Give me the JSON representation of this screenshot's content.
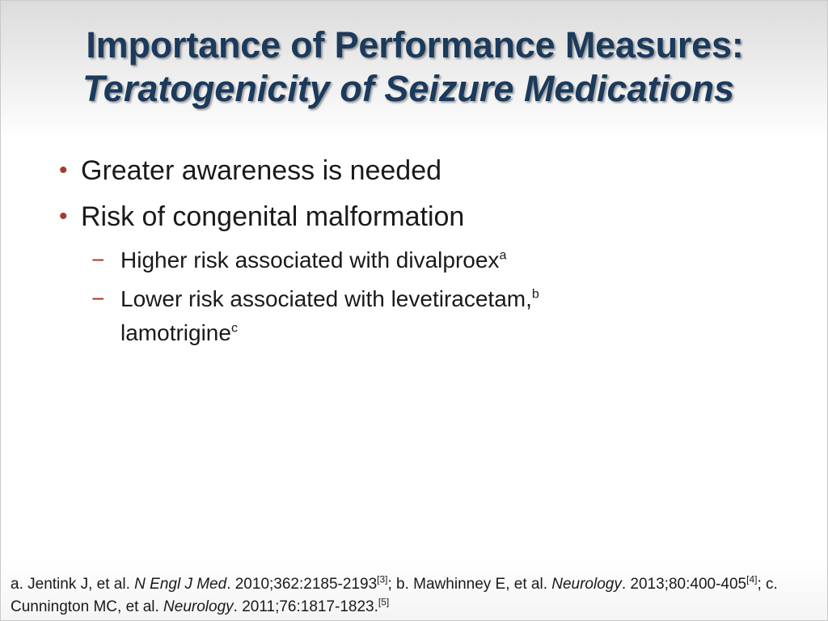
{
  "title": {
    "line1": "Importance of Performance Measures:",
    "line2": "Teratogenicity of Seizure Medications"
  },
  "bullets": [
    {
      "text": "Greater awareness is needed"
    },
    {
      "text": "Risk of congenital malformation"
    }
  ],
  "sub_bullets": [
    {
      "text": "Higher risk associated with divalproex",
      "sup": "a"
    },
    {
      "text": "Lower risk associated with levetiracetam,",
      "sup": "b",
      "text2": "lamotrigine",
      "sup2": "c"
    }
  ],
  "markers": {
    "bullet": "•",
    "dash": "−"
  },
  "footnote": {
    "a_prefix": "a. Jentink J, et al. ",
    "a_journal": "N Engl J Med",
    "a_cite": ". 2010;362:2185-2193",
    "a_ref": "[3]",
    "b_prefix": "; b. Mawhinney E, et al. ",
    "b_journal": "Neurology",
    "b_cite": ". 2013;80:400-405",
    "b_ref": "[4]",
    "c_prefix": "; c. Cunnington MC, et al. ",
    "c_journal": "Neurology",
    "c_cite": ". 2011;76:1817-1823.",
    "c_ref": "[5]"
  },
  "colors": {
    "title": "#1b3a5c",
    "accent": "#a63a2a",
    "body_text": "#1a1a1a"
  }
}
